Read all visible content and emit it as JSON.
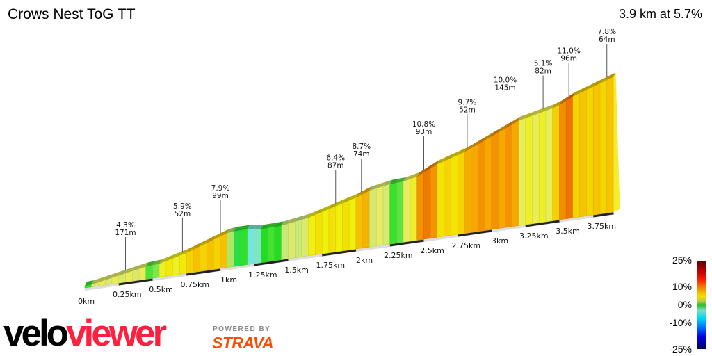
{
  "header": {
    "title": "Crows Nest ToG TT",
    "summary": "3.9 km at 5.7%"
  },
  "legend": {
    "labels": [
      "25%",
      "10%",
      "0%",
      "-10%",
      "-25%"
    ]
  },
  "branding": {
    "logo_part1": "velo",
    "logo_part2": "viewer",
    "powered_by": "POWERED BY",
    "strava": "STRAVA"
  },
  "chart_data": {
    "type": "area",
    "title": "Crows Nest ToG TT",
    "x_unit": "km",
    "xlim": [
      0,
      3.9
    ],
    "x_ticks": [
      "0km",
      "0.25km",
      "0.5km",
      "0.75km",
      "1km",
      "1.25km",
      "1.5km",
      "1.75km",
      "2km",
      "2.25km",
      "2.5km",
      "2.75km",
      "3km",
      "3.25km",
      "3.5km",
      "3.75km"
    ],
    "segments": [
      {
        "from": 0,
        "to": 0.05,
        "gradient": 1
      },
      {
        "from": 0.05,
        "to": 0.45,
        "gradient": 4.3
      },
      {
        "from": 0.45,
        "to": 0.55,
        "gradient": 1.5
      },
      {
        "from": 0.55,
        "to": 0.75,
        "gradient": 5.9
      },
      {
        "from": 0.75,
        "to": 1.05,
        "gradient": 7.9
      },
      {
        "from": 1.05,
        "to": 1.1,
        "gradient": 3
      },
      {
        "from": 1.1,
        "to": 1.2,
        "gradient": 0
      },
      {
        "from": 1.2,
        "to": 1.3,
        "gradient": -3
      },
      {
        "from": 1.3,
        "to": 1.45,
        "gradient": 0.5
      },
      {
        "from": 1.45,
        "to": 1.65,
        "gradient": 3.5
      },
      {
        "from": 1.65,
        "to": 2.0,
        "gradient": 6.4
      },
      {
        "from": 2.0,
        "to": 2.1,
        "gradient": 8.7
      },
      {
        "from": 2.1,
        "to": 2.25,
        "gradient": 4
      },
      {
        "from": 2.25,
        "to": 2.35,
        "gradient": 1
      },
      {
        "from": 2.35,
        "to": 2.45,
        "gradient": 5
      },
      {
        "from": 2.45,
        "to": 2.6,
        "gradient": 10.8
      },
      {
        "from": 2.6,
        "to": 2.8,
        "gradient": 7
      },
      {
        "from": 2.8,
        "to": 2.85,
        "gradient": 9.7
      },
      {
        "from": 2.85,
        "to": 3.2,
        "gradient": 10.0
      },
      {
        "from": 3.2,
        "to": 3.45,
        "gradient": 5.1
      },
      {
        "from": 3.45,
        "to": 3.5,
        "gradient": 8
      },
      {
        "from": 3.5,
        "to": 3.6,
        "gradient": 11.0
      },
      {
        "from": 3.6,
        "to": 3.9,
        "gradient": 7.8
      }
    ],
    "annotations": [
      {
        "km": 0.3,
        "gradient": "4.3%",
        "length": "171m"
      },
      {
        "km": 0.72,
        "gradient": "5.9%",
        "length": "52m"
      },
      {
        "km": 1.0,
        "gradient": "7.9%",
        "length": "99m"
      },
      {
        "km": 1.85,
        "gradient": "6.4%",
        "length": "87m"
      },
      {
        "km": 2.04,
        "gradient": "8.7%",
        "length": "74m"
      },
      {
        "km": 2.5,
        "gradient": "10.8%",
        "length": "93m"
      },
      {
        "km": 2.82,
        "gradient": "9.7%",
        "length": "52m"
      },
      {
        "km": 3.1,
        "gradient": "10.0%",
        "length": "145m"
      },
      {
        "km": 3.38,
        "gradient": "5.1%",
        "length": "82m"
      },
      {
        "km": 3.57,
        "gradient": "11.0%",
        "length": "96m"
      },
      {
        "km": 3.85,
        "gradient": "7.8%",
        "length": "64m"
      }
    ],
    "color_scale": {
      "min": "-25%",
      "max": "25%"
    }
  }
}
